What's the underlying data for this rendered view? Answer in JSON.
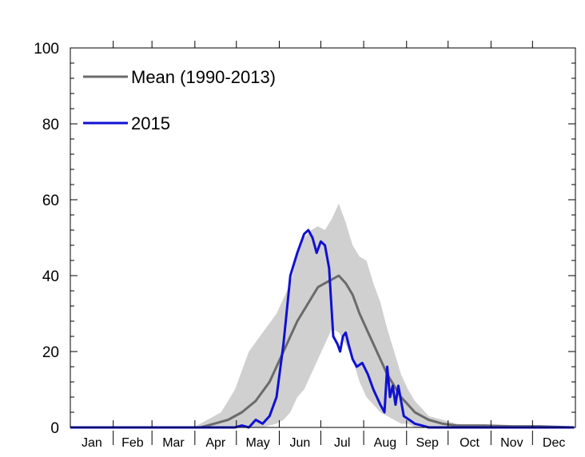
{
  "chart_data": {
    "type": "line",
    "title": "",
    "xlabel": "",
    "ylabel": "",
    "ylim": [
      0,
      100
    ],
    "yticks": [
      0,
      20,
      40,
      60,
      80,
      100
    ],
    "xlim": [
      1,
      366
    ],
    "months": [
      "Jan",
      "Feb",
      "Mar",
      "Apr",
      "May",
      "Jun",
      "Jul",
      "Aug",
      "Sep",
      "Oct",
      "Nov",
      "Dec"
    ],
    "grid": false,
    "legend_position": "top-left",
    "colors": {
      "mean": "#6b6b6b",
      "y2015": "#1010d0",
      "range": "#d0d0d0"
    },
    "range_band": {
      "x": [
        1,
        90,
        110,
        120,
        130,
        140,
        150,
        155,
        160,
        165,
        170,
        175,
        180,
        185,
        190,
        195,
        200,
        205,
        210,
        215,
        220,
        225,
        230,
        235,
        240,
        245,
        250,
        255,
        260,
        270,
        280,
        300,
        365
      ],
      "lower": [
        0,
        0,
        0,
        0,
        0,
        0,
        1,
        2,
        4,
        8,
        10,
        14,
        18,
        22,
        26,
        25,
        22,
        18,
        12,
        8,
        6,
        4,
        3,
        2,
        1,
        1,
        0,
        0,
        0,
        0,
        0,
        0,
        0
      ],
      "upper": [
        0,
        0,
        4,
        10,
        20,
        25,
        30,
        34,
        38,
        45,
        50,
        52,
        53,
        52,
        55,
        59,
        54,
        48,
        45,
        44,
        38,
        33,
        26,
        20,
        14,
        10,
        7,
        5,
        3,
        2,
        1,
        0,
        0
      ]
    },
    "series": [
      {
        "name": "Mean (1990-2013)",
        "x": [
          1,
          20,
          40,
          60,
          80,
          95,
          105,
          115,
          125,
          135,
          145,
          150,
          155,
          160,
          165,
          170,
          175,
          180,
          185,
          190,
          195,
          200,
          205,
          210,
          215,
          220,
          225,
          230,
          235,
          240,
          245,
          250,
          255,
          260,
          270,
          280,
          300,
          320,
          340,
          365
        ],
        "values": [
          0,
          0,
          0,
          0,
          0,
          0,
          1,
          2,
          4,
          7,
          12,
          16,
          20,
          24,
          28,
          31,
          34,
          37,
          38,
          39,
          40,
          38,
          35,
          30,
          26,
          22,
          18,
          14,
          11,
          8,
          6,
          4,
          3,
          2,
          1,
          0.5,
          0.5,
          0.3,
          0.3,
          0
        ]
      },
      {
        "name": "2015",
        "x": [
          1,
          100,
          110,
          120,
          125,
          130,
          135,
          140,
          145,
          150,
          155,
          160,
          165,
          170,
          173,
          176,
          179,
          182,
          185,
          188,
          191,
          194,
          196,
          198,
          200,
          202,
          205,
          208,
          212,
          216,
          220,
          225,
          228,
          230,
          232,
          234,
          236,
          238,
          242,
          246,
          250,
          255,
          260,
          265,
          270,
          365
        ],
        "values": [
          0,
          0,
          0,
          0,
          0.5,
          0,
          2,
          1,
          3,
          8,
          22,
          40,
          46,
          51,
          52,
          50,
          46,
          49,
          48,
          42,
          24,
          22,
          20,
          24,
          25,
          22,
          18,
          16,
          17,
          14,
          10,
          6,
          4,
          16,
          8,
          11,
          6,
          11,
          3,
          2,
          1,
          0.5,
          0,
          0,
          0,
          0
        ]
      }
    ]
  }
}
